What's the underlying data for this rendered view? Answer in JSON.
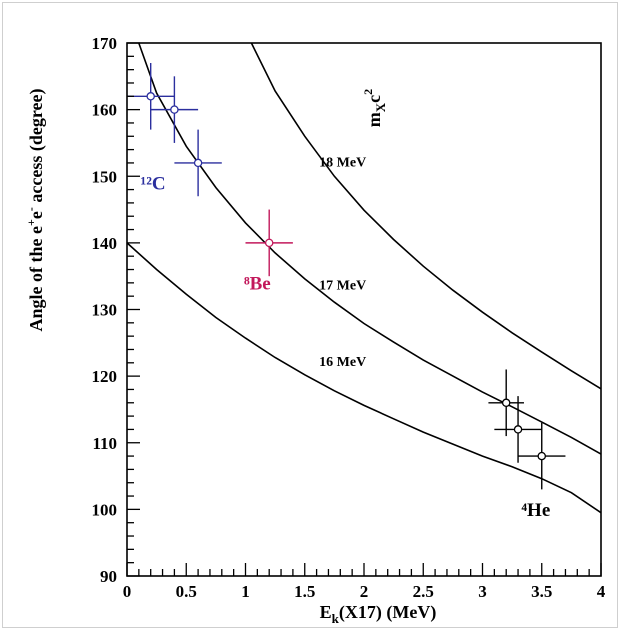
{
  "chart_data": {
    "type": "scatter",
    "xlabel": {
      "main": "E",
      "sub": "k",
      "rest": "(X17) (MeV)"
    },
    "ylabel": {
      "pre": "Angle of the e",
      "sup1": "+",
      "mid": "e",
      "sup2": "-",
      "post": " access (degree)"
    },
    "xlim": [
      0,
      4
    ],
    "ylim": [
      90,
      170
    ],
    "xticks": [
      0,
      0.5,
      1,
      1.5,
      2,
      2.5,
      3,
      3.5,
      4
    ],
    "xtick_labels": [
      "0",
      "0.5",
      "1",
      "1.5",
      "2",
      "2.5",
      "3",
      "3.5",
      "4"
    ],
    "yticks": [
      90,
      100,
      110,
      120,
      130,
      140,
      150,
      160,
      170
    ],
    "ytick_labels": [
      "90",
      "100",
      "110",
      "120",
      "130",
      "140",
      "150",
      "160",
      "170"
    ],
    "curve_title": {
      "main": "m",
      "sub": "X",
      "rest": "c",
      "sup": "2"
    },
    "curves": [
      {
        "label": "16 MeV",
        "x": [
          0.0,
          0.25,
          0.5,
          0.75,
          1.0,
          1.25,
          1.5,
          1.75,
          2.0,
          2.25,
          2.5,
          2.75,
          3.0,
          3.25,
          3.5,
          3.75,
          4.0
        ],
        "y": [
          140.0,
          136.0,
          132.3,
          128.8,
          125.7,
          122.8,
          120.2,
          117.8,
          115.6,
          113.6,
          111.6,
          109.8,
          108.0,
          106.4,
          104.6,
          102.5,
          99.5
        ]
      },
      {
        "label": "17 MeV",
        "x": [
          0.1,
          0.25,
          0.5,
          0.75,
          1.0,
          1.25,
          1.5,
          1.75,
          2.0,
          2.25,
          2.5,
          2.75,
          3.0,
          3.25,
          3.5,
          3.75,
          4.0
        ],
        "y": [
          170.0,
          162.5,
          154.5,
          148.3,
          143.0,
          138.5,
          134.6,
          131.1,
          127.9,
          125.1,
          122.4,
          120.0,
          117.6,
          115.4,
          113.1,
          110.8,
          108.3
        ]
      },
      {
        "label": "18 MeV",
        "x": [
          1.05,
          1.25,
          1.5,
          1.75,
          2.0,
          2.25,
          2.5,
          2.75,
          3.0,
          3.25,
          3.5,
          3.75,
          4.0
        ],
        "y": [
          170.0,
          162.8,
          156.0,
          150.0,
          144.9,
          140.5,
          136.5,
          132.9,
          129.6,
          126.5,
          123.6,
          120.8,
          118.1
        ]
      }
    ],
    "groups": [
      {
        "label": "¹²C",
        "color": "#2b2f9e",
        "points": [
          {
            "x": 0.2,
            "y": 162,
            "xerr": 0.2,
            "yerr": 5
          },
          {
            "x": 0.4,
            "y": 160,
            "xerr": 0.2,
            "yerr": 5
          },
          {
            "x": 0.6,
            "y": 152,
            "xerr": 0.2,
            "yerr": 5
          }
        ]
      },
      {
        "label": "⁸Be",
        "color": "#c2185b",
        "points": [
          {
            "x": 1.2,
            "y": 140,
            "xerr": 0.2,
            "yerr": 5
          }
        ]
      },
      {
        "label": "⁴He",
        "color": "#000000",
        "points": [
          {
            "x": 3.2,
            "y": 116,
            "xerr": 0.15,
            "yerr": 5
          },
          {
            "x": 3.3,
            "y": 112,
            "xerr": 0.2,
            "yerr": 5
          },
          {
            "x": 3.5,
            "y": 108,
            "xerr": 0.2,
            "yerr": 5
          }
        ]
      }
    ],
    "legend": "none",
    "grid": false
  }
}
